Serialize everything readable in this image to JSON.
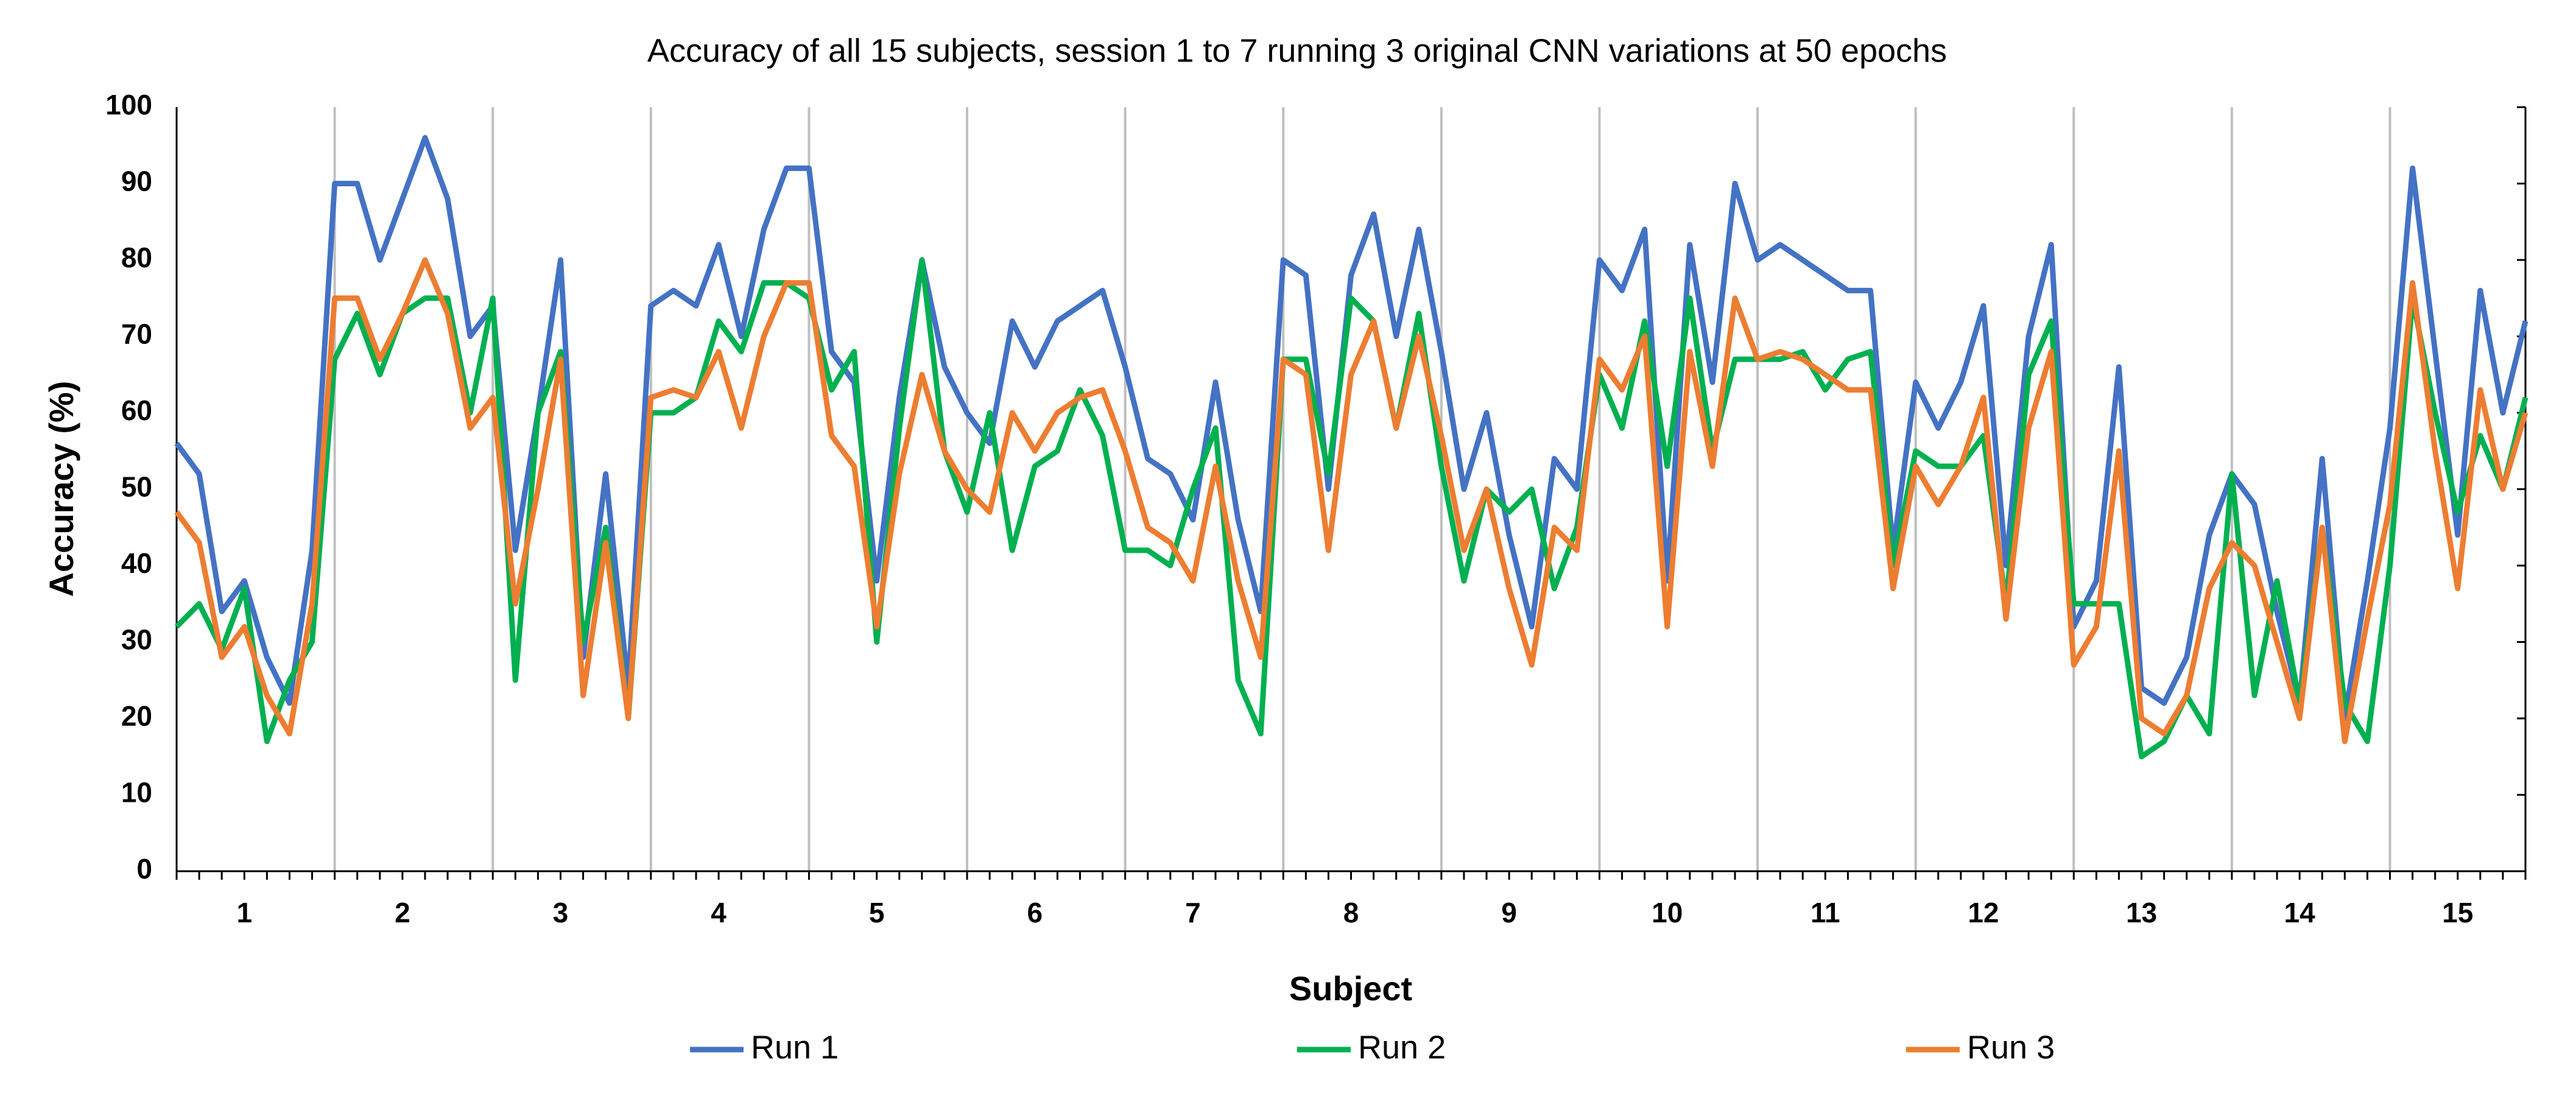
{
  "chart_data": {
    "type": "line",
    "title": "Accuracy of all 15 subjects, session 1 to 7 running 3 original CNN variations at 50 epochs",
    "x_label": "Subject",
    "y_label": "Accuracy (%)",
    "categories": [
      null,
      null,
      null,
      "1",
      null,
      null,
      null,
      null,
      null,
      null,
      "2",
      null,
      null,
      null,
      null,
      null,
      null,
      "3",
      null,
      null,
      null,
      null,
      null,
      null,
      "4",
      null,
      null,
      null,
      null,
      null,
      null,
      "5",
      null,
      null,
      null,
      null,
      null,
      null,
      "6",
      null,
      null,
      null,
      null,
      null,
      null,
      "7",
      null,
      null,
      null,
      null,
      null,
      null,
      "8",
      null,
      null,
      null,
      null,
      null,
      null,
      "9",
      null,
      null,
      null,
      null,
      null,
      null,
      "10",
      null,
      null,
      null,
      null,
      null,
      null,
      "11",
      null,
      null,
      null,
      null,
      null,
      null,
      "12",
      null,
      null,
      null,
      null,
      null,
      null,
      "13",
      null,
      null,
      null,
      null,
      null,
      null,
      "14",
      null,
      null,
      null,
      null,
      null,
      null,
      "15",
      null,
      null,
      null
    ],
    "series": [
      {
        "name": "Run 1",
        "color": "#4472c4",
        "values": [
          56,
          52,
          34,
          38,
          28,
          22,
          42,
          90,
          90,
          80,
          88,
          96,
          88,
          70,
          74,
          42,
          60,
          80,
          28,
          52,
          24,
          74,
          76,
          74,
          82,
          70,
          84,
          92,
          92,
          68,
          64,
          38,
          62,
          80,
          66,
          60,
          56,
          72,
          66,
          72,
          74,
          76,
          66,
          54,
          52,
          46,
          64,
          46,
          34,
          80,
          78,
          50,
          78,
          86,
          70,
          84,
          68,
          50,
          60,
          44,
          32,
          54,
          50,
          80,
          76,
          84,
          38,
          82,
          64,
          90,
          80,
          82,
          80,
          78,
          76,
          76,
          42,
          64,
          58,
          64,
          74,
          40,
          70,
          82,
          32,
          38,
          66,
          24,
          22,
          28,
          44,
          52,
          48,
          34,
          22,
          54,
          20,
          38,
          58,
          92,
          68,
          44,
          76,
          60,
          72
        ]
      },
      {
        "name": "Run 2",
        "color": "#00b050",
        "values": [
          32,
          35,
          29,
          37,
          17,
          25,
          30,
          67,
          73,
          65,
          73,
          75,
          75,
          60,
          75,
          25,
          60,
          68,
          30,
          45,
          20,
          60,
          60,
          62,
          72,
          68,
          77,
          77,
          75,
          63,
          68,
          30,
          58,
          80,
          55,
          47,
          60,
          42,
          53,
          55,
          63,
          57,
          42,
          42,
          40,
          50,
          58,
          25,
          18,
          67,
          67,
          52,
          75,
          72,
          58,
          73,
          53,
          38,
          50,
          47,
          50,
          37,
          45,
          65,
          58,
          72,
          53,
          75,
          55,
          67,
          67,
          67,
          68,
          63,
          67,
          68,
          40,
          55,
          53,
          53,
          57,
          35,
          65,
          72,
          35,
          35,
          35,
          15,
          17,
          23,
          18,
          52,
          23,
          38,
          22,
          45,
          22,
          17,
          40,
          75,
          60,
          47,
          57,
          50,
          62
        ]
      },
      {
        "name": "Run 3",
        "color": "#ed7d31",
        "values": [
          47,
          43,
          28,
          32,
          23,
          18,
          35,
          75,
          75,
          67,
          73,
          80,
          73,
          58,
          62,
          35,
          50,
          67,
          23,
          43,
          20,
          62,
          63,
          62,
          68,
          58,
          70,
          77,
          77,
          57,
          53,
          32,
          52,
          65,
          55,
          50,
          47,
          60,
          55,
          60,
          62,
          63,
          55,
          45,
          43,
          38,
          53,
          38,
          28,
          67,
          65,
          42,
          65,
          72,
          58,
          70,
          57,
          42,
          50,
          37,
          27,
          45,
          42,
          67,
          63,
          70,
          32,
          68,
          53,
          75,
          67,
          68,
          67,
          65,
          63,
          63,
          37,
          53,
          48,
          53,
          62,
          33,
          58,
          68,
          27,
          32,
          55,
          20,
          18,
          23,
          37,
          43,
          40,
          30,
          20,
          45,
          17,
          33,
          48,
          77,
          55,
          37,
          63,
          50,
          60
        ]
      }
    ],
    "ylim": [
      0,
      100
    ],
    "yticks": [
      0,
      10,
      20,
      30,
      40,
      50,
      60,
      70,
      80,
      90,
      100
    ],
    "legend": "bottom"
  }
}
